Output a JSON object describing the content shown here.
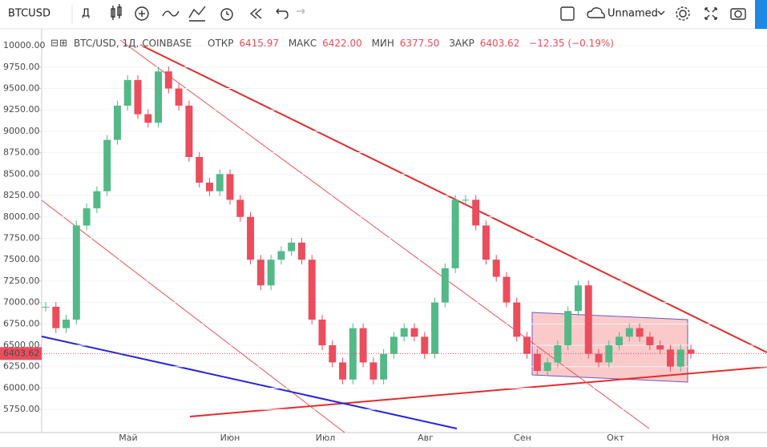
{
  "toolbar": {
    "symbol": "BTCUSD",
    "interval": "Д",
    "layout_name": "Unnamed"
  },
  "legend": {
    "title": "BTC/USD, 1Д, COINBASE",
    "open_label": "ОТКР",
    "open": "6415.97",
    "high_label": "МАКС",
    "high": "6422.00",
    "low_label": "МИН",
    "low": "6377.50",
    "close_label": "ЗАКР",
    "close": "6403.62",
    "change": "−12.35 (−0.19%)"
  },
  "chart_data": {
    "type": "candlestick",
    "values": [
      6950,
      6700,
      6800,
      7900,
      8100,
      8300,
      8900,
      9300,
      9600,
      9200,
      9100,
      9700,
      9500,
      9300,
      8700,
      8400,
      8300,
      8500,
      8200,
      8000,
      7500,
      7200,
      7500,
      7600,
      7700,
      7500,
      6800,
      6500,
      6300,
      6100,
      6700,
      6300,
      6100,
      6400,
      6600,
      6700,
      6600,
      6400,
      7000,
      7400,
      8200,
      8200,
      7900,
      7500,
      7300,
      7000,
      6600,
      6400,
      6200,
      6300,
      6500,
      6900,
      7200,
      6400,
      6300,
      6500,
      6600,
      6700,
      6600,
      6500,
      6450,
      6250,
      6450,
      6400
    ],
    "up_color": "#53b987",
    "down_color": "#eb4d5c",
    "months": [
      "Май",
      "Июн",
      "Июл",
      "Авг",
      "Сен",
      "Окт",
      "Ноя"
    ],
    "ylim": [
      5480,
      10160
    ],
    "yticks": [
      {
        "value": 5750,
        "label": "5750.00"
      },
      {
        "value": 6000,
        "label": "6000.00"
      },
      {
        "value": 6250,
        "label": "6250.00"
      },
      {
        "value": 6500,
        "label": "6500.00"
      },
      {
        "value": 6750,
        "label": "6750.00"
      },
      {
        "value": 7000,
        "label": "7000.00"
      },
      {
        "value": 7250,
        "label": "7250.00"
      },
      {
        "value": 7500,
        "label": "7500.00"
      },
      {
        "value": 7750,
        "label": "7750.00"
      },
      {
        "value": 8000,
        "label": "8000.00"
      },
      {
        "value": 8250,
        "label": "8250.00"
      },
      {
        "value": 8500,
        "label": "8500.00"
      },
      {
        "value": 8750,
        "label": "8750.00"
      },
      {
        "value": 9000,
        "label": "9000.00"
      },
      {
        "value": 9250,
        "label": "9250.00"
      },
      {
        "value": 9500,
        "label": "9500.00"
      },
      {
        "value": 9750,
        "label": "9750.00"
      },
      {
        "value": 10000,
        "label": "10000.00"
      }
    ],
    "last_price": 6403.62,
    "last_price_color": "#eb4d5c"
  }
}
